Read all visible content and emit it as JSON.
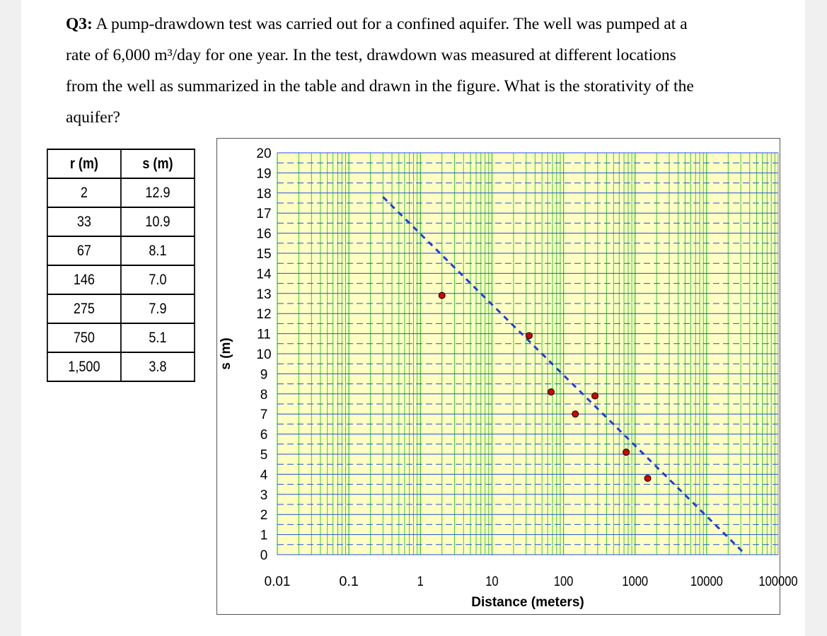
{
  "question": {
    "label": "Q3:",
    "lines": [
      "A pump-drawdown test was carried out for a confined aquifer. The well was pumped at a",
      "rate of 6,000 m³/day for one year. In the test, drawdown was measured at different locations",
      "from the well as summarized in the table and drawn in the figure. What is the storativity of the",
      "aquifer?"
    ]
  },
  "table": {
    "headers": [
      "r (m)",
      "s (m)"
    ],
    "rows": [
      [
        "2",
        "12.9"
      ],
      [
        "33",
        "10.9"
      ],
      [
        "67",
        "8.1"
      ],
      [
        "146",
        "7.0"
      ],
      [
        "275",
        "7.9"
      ],
      [
        "750",
        "5.1"
      ],
      [
        "1,500",
        "3.8"
      ]
    ]
  },
  "chart_data": {
    "type": "scatter",
    "title": "",
    "xlabel": "Distance (meters)",
    "ylabel": "s (m)",
    "xscale": "log",
    "xlim": [
      0.01,
      100000
    ],
    "ylim": [
      0,
      20
    ],
    "xticks": [
      "0.01",
      "0.1",
      "1",
      "10",
      "100",
      "1000",
      "10000",
      "100000"
    ],
    "yticks": [
      "0",
      "1",
      "2",
      "3",
      "4",
      "5",
      "6",
      "7",
      "8",
      "9",
      "10",
      "11",
      "12",
      "13",
      "14",
      "15",
      "16",
      "17",
      "18",
      "19",
      "20"
    ],
    "grid": true,
    "series": [
      {
        "kind": "points",
        "color": "#d40000",
        "points": [
          [
            2,
            12.9
          ],
          [
            33,
            10.9
          ],
          [
            67,
            8.1
          ],
          [
            146,
            7.0
          ],
          [
            275,
            7.9
          ],
          [
            750,
            5.1
          ],
          [
            1500,
            3.8
          ]
        ]
      },
      {
        "kind": "dashed-line",
        "color": "#1f3fd6",
        "points": [
          [
            0.3,
            17.8
          ],
          [
            35000,
            0
          ]
        ]
      }
    ],
    "colors": {
      "plot_bg": "#ffffc4",
      "grid_x": "#37c837",
      "grid_y": "#2050e0"
    }
  }
}
